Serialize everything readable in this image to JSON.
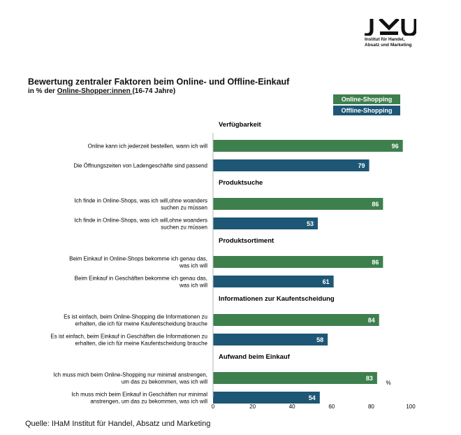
{
  "logo": {
    "text": "JKU",
    "subtitle_lines": [
      "Institut für Handel,",
      "Absatz und Marketing"
    ]
  },
  "title": "Bewertung zentraler Faktoren beim Online- und Offline-Einkauf",
  "subtitle": {
    "prefix": "in % der ",
    "underlined": "Online-Shopper:innen ",
    "suffix": "(16-74  Jahre)"
  },
  "legend": [
    {
      "label": "Online-Shopping",
      "color": "#3d7f4d"
    },
    {
      "label": "Offline-Shopping",
      "color": "#1d5775"
    }
  ],
  "source": "Quelle: IHaM Institut für Handel, Absatz und Marketing",
  "chart_data": {
    "type": "bar",
    "orientation": "horizontal",
    "unit": "%",
    "xlim": [
      0,
      100
    ],
    "xticks": [
      0,
      20,
      40,
      60,
      80,
      100
    ],
    "grid": false,
    "groups": [
      {
        "category": "Verfügbarkeit",
        "rows": [
          {
            "series": "Online-Shopping",
            "label": [
              "Online kann ich jederzeit bestellen, wann ich will"
            ],
            "value": 96
          },
          {
            "series": "Offline-Shopping",
            "label": [
              "Die Öffnungszeiten von Ladengeschäfte sind passend"
            ],
            "value": 79
          }
        ]
      },
      {
        "category": "Produktsuche",
        "rows": [
          {
            "series": "Online-Shopping",
            "label": [
              "Ich finde in Online-Shops, was ich will,ohne woanders",
              "suchen zu müssen"
            ],
            "value": 86
          },
          {
            "series": "Offline-Shopping",
            "label": [
              "Ich finde in Online-Shops, was ich will,ohne woanders",
              "suchen zu müssen"
            ],
            "value": 53
          }
        ]
      },
      {
        "category": "Produktsortiment",
        "rows": [
          {
            "series": "Online-Shopping",
            "label": [
              "Beim Einkauf in Online-Shops bekomme ich genau das,",
              "was ich will"
            ],
            "value": 86
          },
          {
            "series": "Offline-Shopping",
            "label": [
              "Beim Einkauf in Geschäften bekomme ich genau das,",
              "was ich will"
            ],
            "value": 61
          }
        ]
      },
      {
        "category": "Informationen zur Kaufentscheidung",
        "rows": [
          {
            "series": "Online-Shopping",
            "label": [
              "Es ist einfach, beim Online-Shopping die Informationen zu",
              "erhalten, die ich für meine Kaufentscheidung brauche"
            ],
            "value": 84
          },
          {
            "series": "Offline-Shopping",
            "label": [
              "Es ist einfach, beim Einkauf in Geschäften die Informationen zu",
              "erhalten, die ich für meine Kaufentscheidung brauche"
            ],
            "value": 58
          }
        ]
      },
      {
        "category": "Aufwand beim Einkauf",
        "rows": [
          {
            "series": "Online-Shopping",
            "label": [
              "Ich muss mich beim Online-Shopping nur minimal anstrengen,",
              "um das zu bekommen, was ich will"
            ],
            "value": 83
          },
          {
            "series": "Offline-Shopping",
            "label": [
              "Ich muss mich beim Einkauf in Geschäften nur minimal",
              "anstrengen, um das zu bekommen, was ich will"
            ],
            "value": 54
          }
        ]
      }
    ]
  }
}
